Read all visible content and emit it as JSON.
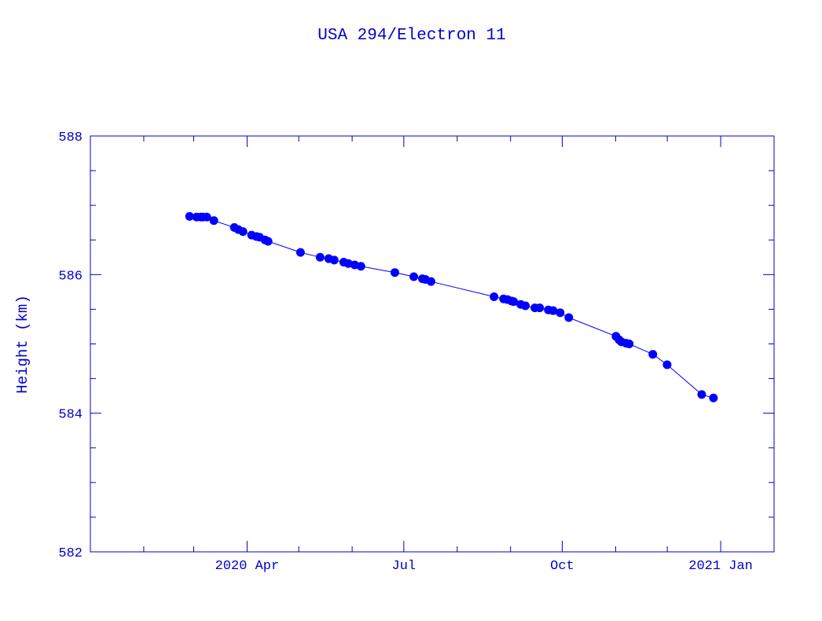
{
  "chart_data": {
    "type": "line",
    "title": "USA 294/Electron 11",
    "xlabel": "",
    "ylabel": "Height (km)",
    "x_units": "days since 2020-01-01",
    "xlim": [
      0,
      397
    ],
    "ylim": [
      582,
      588
    ],
    "yticks": [
      {
        "value": 582,
        "label": "582"
      },
      {
        "value": 584,
        "label": "584"
      },
      {
        "value": 586,
        "label": "586"
      },
      {
        "value": 588,
        "label": "588"
      }
    ],
    "y_minor_step": 0.5,
    "xticks": [
      {
        "value": 91,
        "label": "2020 Apr"
      },
      {
        "value": 182,
        "label": "Jul"
      },
      {
        "value": 274,
        "label": "Oct"
      },
      {
        "value": 366,
        "label": "2021 Jan"
      }
    ],
    "x_minor_ticks": [
      31,
      60,
      121,
      152,
      213,
      244,
      305,
      335,
      397
    ],
    "grid": false,
    "color": "#0000ff",
    "axis_color": "#0000cc",
    "series": [
      {
        "name": "Height",
        "x": [
          57.6,
          61.7,
          64.0,
          65.3,
          67.6,
          71.7,
          83.6,
          85.9,
          88.6,
          93.6,
          96.4,
          98.2,
          101.4,
          103.2,
          122.0,
          133.4,
          138.4,
          141.6,
          147.1,
          149.8,
          153.5,
          157.1,
          176.8,
          187.8,
          192.8,
          194.6,
          197.8,
          234.4,
          239.9,
          242.2,
          244.5,
          245.8,
          249.9,
          252.6,
          258.1,
          260.9,
          265.9,
          268.7,
          272.8,
          277.8,
          305.2,
          307.0,
          308.4,
          311.1,
          312.9,
          326.6,
          334.9,
          355.0,
          361.8
        ],
        "y": [
          586.84,
          586.83,
          586.83,
          586.83,
          586.83,
          586.78,
          586.68,
          586.65,
          586.62,
          586.57,
          586.55,
          586.54,
          586.5,
          586.48,
          586.32,
          586.25,
          586.23,
          586.21,
          586.18,
          586.16,
          586.14,
          586.12,
          586.03,
          585.97,
          585.94,
          585.93,
          585.9,
          585.68,
          585.65,
          585.64,
          585.62,
          585.61,
          585.57,
          585.55,
          585.52,
          585.52,
          585.49,
          585.48,
          585.45,
          585.38,
          585.11,
          585.06,
          585.03,
          585.01,
          585.0,
          584.85,
          584.7,
          584.27,
          584.22
        ]
      }
    ]
  }
}
